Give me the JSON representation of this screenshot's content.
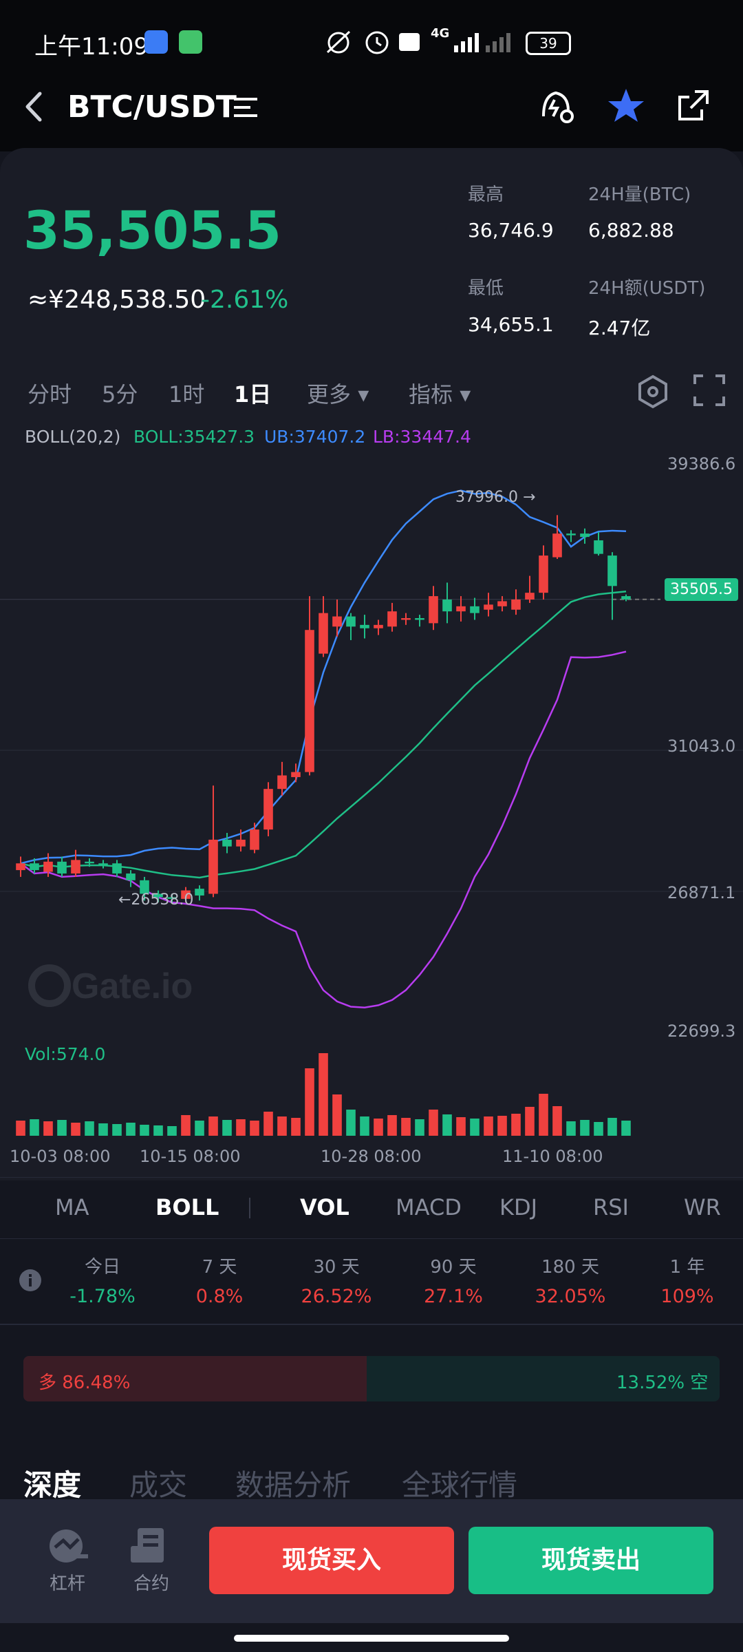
{
  "status_bar": {
    "time": "上午11:09",
    "network": "4G",
    "battery": "39"
  },
  "header": {
    "title": "BTC/USDT"
  },
  "ticker": {
    "last_price": "35,505.5",
    "cny_price": "≈¥248,538.50",
    "change_pct": "-2.61%",
    "high_label": "最高",
    "high": "36,746.9",
    "vol_label": "24H量(BTC)",
    "vol": "6,882.88",
    "low_label": "最低",
    "low": "34,655.1",
    "amt_label": "24H额(USDT)",
    "amt": "2.47亿"
  },
  "timeframes": [
    "分时",
    "5分",
    "1时",
    "1日"
  ],
  "timeframe_active": "1日",
  "more_label": "更多",
  "indicator_label": "指标",
  "boll": {
    "name": "BOLL(20,2)",
    "mid": "BOLL:35427.3",
    "ub": "UB:37407.2",
    "lb": "LB:33447.4"
  },
  "colors": {
    "up": "#f0413f",
    "down": "#1fbf87",
    "ub": "#3d8bff",
    "mid": "#1fbf87",
    "lb": "#b83cf0"
  },
  "chart_data": {
    "type": "candlestick",
    "y_axis_ticks": [
      "39386.6",
      "31043.0",
      "26871.1",
      "22699.3"
    ],
    "ylim": [
      22699.3,
      39386.6
    ],
    "x_axis_ticks": [
      "10-03 08:00",
      "10-15 08:00",
      "10-28 08:00",
      "11-10 08:00"
    ],
    "current_price_tag": "35505.5",
    "max_marker": "37996.0 →",
    "min_marker": "←26538.0",
    "watermark": "Gate.io",
    "vol_label": "Vol:574.0",
    "candles": [
      {
        "o": 27500,
        "c": 27700,
        "h": 27900,
        "l": 27300
      },
      {
        "o": 27700,
        "c": 27500,
        "h": 27850,
        "l": 27400
      },
      {
        "o": 27450,
        "c": 27750,
        "h": 28000,
        "l": 27300
      },
      {
        "o": 27750,
        "c": 27400,
        "h": 27900,
        "l": 27300
      },
      {
        "o": 27400,
        "c": 27800,
        "h": 28100,
        "l": 27300
      },
      {
        "o": 27750,
        "c": 27700,
        "h": 27850,
        "l": 27600
      },
      {
        "o": 27700,
        "c": 27650,
        "h": 27800,
        "l": 27550
      },
      {
        "o": 27700,
        "c": 27400,
        "h": 27800,
        "l": 27300
      },
      {
        "o": 27400,
        "c": 27200,
        "h": 27500,
        "l": 27000
      },
      {
        "o": 27200,
        "c": 26800,
        "h": 27300,
        "l": 26600
      },
      {
        "o": 26800,
        "c": 26700,
        "h": 26900,
        "l": 26550
      },
      {
        "o": 26700,
        "c": 26650,
        "h": 26800,
        "l": 26550
      },
      {
        "o": 26650,
        "c": 26900,
        "h": 27000,
        "l": 26550
      },
      {
        "o": 26950,
        "c": 26750,
        "h": 27050,
        "l": 26600
      },
      {
        "o": 26800,
        "c": 28400,
        "h": 30000,
        "l": 26700
      },
      {
        "o": 28400,
        "c": 28200,
        "h": 28600,
        "l": 28000
      },
      {
        "o": 28200,
        "c": 28400,
        "h": 28700,
        "l": 28050
      },
      {
        "o": 28100,
        "c": 28700,
        "h": 28900,
        "l": 28000
      },
      {
        "o": 28700,
        "c": 29900,
        "h": 30100,
        "l": 28500
      },
      {
        "o": 29900,
        "c": 30300,
        "h": 30700,
        "l": 29700
      },
      {
        "o": 30250,
        "c": 30400,
        "h": 30650,
        "l": 30100
      },
      {
        "o": 30400,
        "c": 34600,
        "h": 35600,
        "l": 30300
      },
      {
        "o": 33900,
        "c": 35100,
        "h": 35600,
        "l": 33800
      },
      {
        "o": 34700,
        "c": 35000,
        "h": 35500,
        "l": 34400
      },
      {
        "o": 35000,
        "c": 34700,
        "h": 35100,
        "l": 34300
      },
      {
        "o": 34750,
        "c": 34650,
        "h": 35050,
        "l": 34350
      },
      {
        "o": 34650,
        "c": 34750,
        "h": 34900,
        "l": 34450
      },
      {
        "o": 34700,
        "c": 35150,
        "h": 35400,
        "l": 34550
      },
      {
        "o": 34900,
        "c": 34950,
        "h": 35100,
        "l": 34750
      },
      {
        "o": 34950,
        "c": 34900,
        "h": 35050,
        "l": 34700
      },
      {
        "o": 34800,
        "c": 35600,
        "h": 35900,
        "l": 34600
      },
      {
        "o": 35500,
        "c": 35150,
        "h": 36000,
        "l": 34800
      },
      {
        "o": 35150,
        "c": 35300,
        "h": 35600,
        "l": 34850
      },
      {
        "o": 35300,
        "c": 35100,
        "h": 35550,
        "l": 34900
      },
      {
        "o": 35200,
        "c": 35350,
        "h": 35700,
        "l": 35000
      },
      {
        "o": 35300,
        "c": 35450,
        "h": 35600,
        "l": 35150
      },
      {
        "o": 35200,
        "c": 35500,
        "h": 35800,
        "l": 35050
      },
      {
        "o": 35500,
        "c": 35700,
        "h": 36200,
        "l": 35400
      },
      {
        "o": 35700,
        "c": 36800,
        "h": 37100,
        "l": 35500
      },
      {
        "o": 36750,
        "c": 37450,
        "h": 37996,
        "l": 36700
      },
      {
        "o": 37450,
        "c": 37400,
        "h": 37550,
        "l": 37200
      },
      {
        "o": 37450,
        "c": 37350,
        "h": 37600,
        "l": 37150
      },
      {
        "o": 37250,
        "c": 36850,
        "h": 37500,
        "l": 36800
      },
      {
        "o": 36800,
        "c": 35900,
        "h": 36900,
        "l": 34900
      },
      {
        "o": 35600,
        "c": 35505,
        "h": 35650,
        "l": 35450
      }
    ],
    "volume": [
      220,
      240,
      210,
      230,
      190,
      210,
      180,
      170,
      190,
      160,
      150,
      140,
      300,
      220,
      280,
      230,
      240,
      220,
      350,
      280,
      260,
      980,
      1200,
      600,
      380,
      280,
      250,
      300,
      260,
      240,
      380,
      310,
      270,
      250,
      280,
      290,
      320,
      420,
      610,
      430,
      210,
      230,
      200,
      260,
      220
    ]
  },
  "indicators": [
    "MA",
    "BOLL",
    "VOL",
    "MACD",
    "KDJ",
    "RSI",
    "WR"
  ],
  "indicators_active": [
    "BOLL",
    "VOL"
  ],
  "performance": [
    {
      "label": "今日",
      "value": "-1.78%",
      "up": false
    },
    {
      "label": "7 天",
      "value": "0.8%",
      "up": true
    },
    {
      "label": "30 天",
      "value": "26.52%",
      "up": true
    },
    {
      "label": "90 天",
      "value": "27.1%",
      "up": true
    },
    {
      "label": "180 天",
      "value": "32.05%",
      "up": true
    },
    {
      "label": "1 年",
      "value": "109%",
      "up": true
    }
  ],
  "long_short": {
    "long_label": "多 86.48%",
    "short_label": "13.52% 空",
    "long_pct": 86.48
  },
  "section_tabs": [
    "深度",
    "成交",
    "数据分析",
    "全球行情"
  ],
  "bottom": {
    "lever_label": "杠杆",
    "contract_label": "合约",
    "buy_label": "现货买入",
    "sell_label": "现货卖出"
  }
}
